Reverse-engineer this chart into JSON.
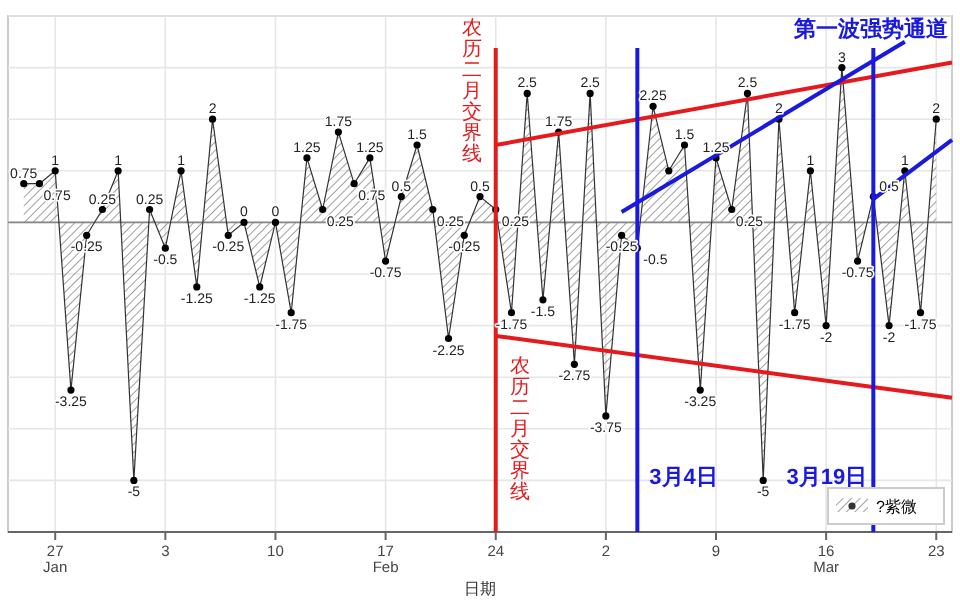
{
  "chart_data": {
    "type": "area",
    "xlabel": "日期",
    "xlim": [
      "--01-24",
      "--03-24"
    ],
    "ylim": [
      -6,
      4
    ],
    "xticks": [
      {
        "value": "--01-27",
        "label": "27\nJan"
      },
      {
        "value": "--02-03",
        "label": "3"
      },
      {
        "value": "--02-10",
        "label": "10"
      },
      {
        "value": "--02-17",
        "label": "17\nFeb"
      },
      {
        "value": "--02-24",
        "label": "24"
      },
      {
        "value": "--03-02",
        "label": "2"
      },
      {
        "value": "--03-09",
        "label": "9"
      },
      {
        "value": "--03-16",
        "label": "16\nMar"
      },
      {
        "value": "--03-23",
        "label": "23"
      }
    ],
    "yticks": [
      {
        "value": -6,
        "label": null
      },
      {
        "value": -5,
        "label": null
      },
      {
        "value": -4,
        "label": null
      },
      {
        "value": -3,
        "label": null
      },
      {
        "value": -2,
        "label": null
      },
      {
        "value": -1,
        "label": null
      },
      {
        "value": 0,
        "label": null
      },
      {
        "value": 1,
        "label": null
      },
      {
        "value": 2,
        "label": null
      },
      {
        "value": 3,
        "label": null
      },
      {
        "value": 4,
        "label": null
      }
    ],
    "tick_labels": "x",
    "grid": true,
    "legend": "bottom right",
    "series": [
      {
        "name": "?紫微",
        "type": "area",
        "color": "#333333",
        "marker": "circle",
        "x": [
          "--01-25",
          "--01-26",
          "--01-27",
          "--01-28",
          "--01-29",
          "--01-30",
          "--01-31",
          "--02-01",
          "--02-02",
          "--02-03",
          "--02-04",
          "--02-05",
          "--02-06",
          "--02-07",
          "--02-08",
          "--02-09",
          "--02-10",
          "--02-11",
          "--02-12",
          "--02-13",
          "--02-14",
          "--02-15",
          "--02-16",
          "--02-17",
          "--02-18",
          "--02-19",
          "--02-20",
          "--02-21",
          "--02-22",
          "--02-23",
          "--02-24",
          "--02-25",
          "--02-26",
          "--02-27",
          "--02-28",
          "--02-29",
          "--03-01",
          "--03-02",
          "--03-03",
          "--03-04",
          "--03-05",
          "--03-06",
          "--03-07",
          "--03-08",
          "--03-09",
          "--03-10",
          "--03-11",
          "--03-12",
          "--03-13",
          "--03-14",
          "--03-15",
          "--03-16",
          "--03-17",
          "--03-18",
          "--03-19",
          "--03-20",
          "--03-21",
          "--03-22",
          "--03-23"
        ],
        "values": [
          0.75,
          0.75,
          1,
          -3.25,
          -0.25,
          0.25,
          1,
          -5,
          0.25,
          -0.5,
          1,
          -1.25,
          2,
          -0.25,
          0,
          -1.25,
          0,
          -1.75,
          1.25,
          0.25,
          1.75,
          0.75,
          1.25,
          -0.75,
          0.5,
          1.5,
          0.25,
          -2.25,
          -0.25,
          0.5,
          0.25,
          -1.75,
          2.5,
          -1.5,
          1.75,
          -2.75,
          2.5,
          -3.75,
          -0.25,
          -0.5,
          2.25,
          1,
          1.5,
          -3.25,
          1.25,
          0.25,
          2.5,
          -5,
          2,
          -1.75,
          1,
          -2,
          3,
          -0.75,
          0.5,
          -2,
          1,
          -1.75,
          2
        ],
        "value_labels": [
          "0.75",
          "0.75",
          "1",
          "-3.25",
          "-0.25",
          "0.25",
          "1",
          "-5",
          "0.25",
          "-0.5",
          "1",
          "-1.25",
          "2",
          "-0.25",
          "0",
          "-1.25",
          "0",
          "-1.75",
          "1.25",
          "0.25",
          "1.75",
          "0.75",
          "1.25",
          "-0.75",
          "0.5",
          "1.5",
          "0.25",
          "-2.25",
          "-0.25",
          "0.5",
          "0.25",
          "-1.75",
          "2.5",
          "-1.5",
          "1.75",
          "-2.75",
          "2.5",
          "-3.75",
          "-0.25",
          "-0.5",
          "2.25",
          null,
          "1.5",
          "-3.25",
          "1.25",
          "0.25",
          "2.5",
          "-5",
          "2",
          "-1.75",
          "1",
          "-2",
          "3",
          "-0.75",
          "0.5",
          "-2",
          "1",
          "-1.75",
          "2"
        ]
      },
      {
        "type": "line",
        "color": "#e41a1c",
        "x": [
          "--02-24",
          "--03-24"
        ],
        "values": [
          1.5,
          3.1
        ]
      },
      {
        "type": "line",
        "color": "#e41a1c",
        "x": [
          "--02-24",
          "--03-24"
        ],
        "values": [
          -2.2,
          -3.4
        ]
      },
      {
        "type": "line",
        "color": "#1a1adf",
        "x": [
          "--03-03",
          "--03-21"
        ],
        "values": [
          0.2,
          3.5
        ]
      },
      {
        "type": "line",
        "color": "#1a1adf",
        "x": [
          "--03-19",
          "--03-24"
        ],
        "values": [
          0.45,
          1.6
        ]
      }
    ],
    "ref_lines": [
      {
        "axis": "x",
        "value": "--02-24",
        "label": "农历二月交界线",
        "color": "#e41a1c"
      },
      {
        "axis": "x",
        "value": "--03-04",
        "label": "3月4日",
        "color": "#1a1adf"
      },
      {
        "axis": "x",
        "value": "--03-19",
        "label": "3月19日",
        "color": "#1a1adf"
      }
    ],
    "title": "第一波强势通道",
    "annotations": [
      "农历二月交界线"
    ]
  }
}
